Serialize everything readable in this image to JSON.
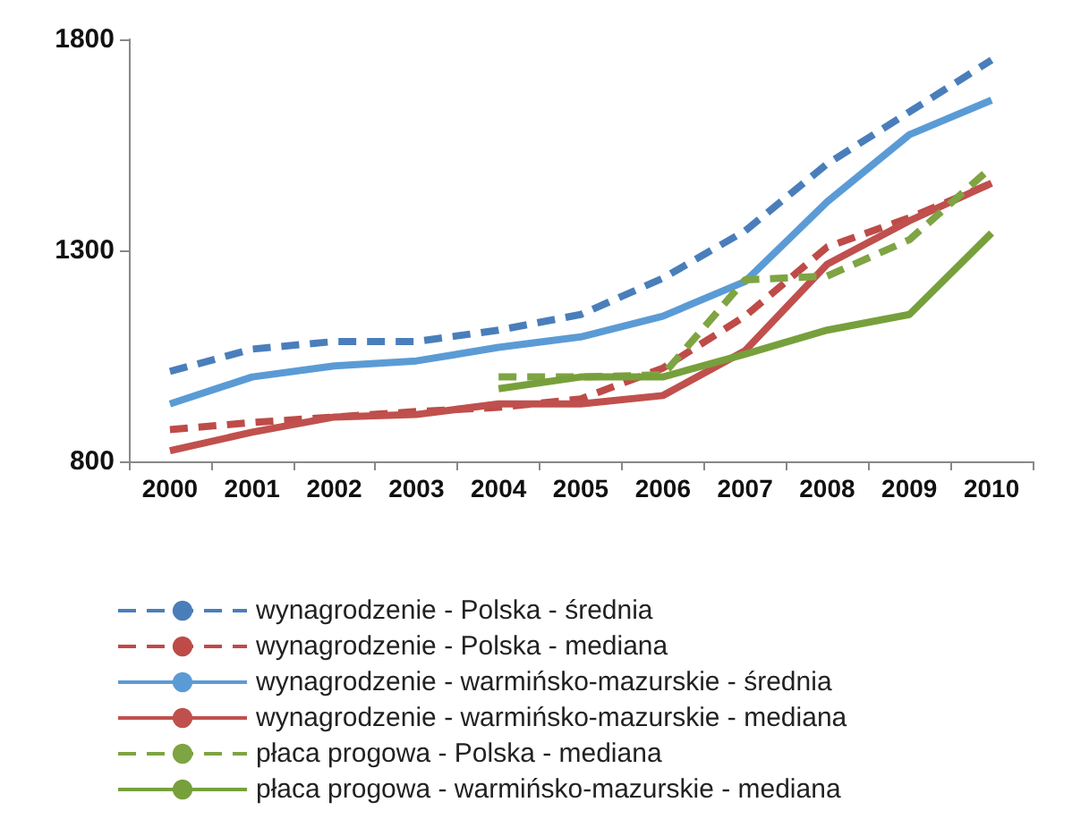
{
  "chart_data": {
    "type": "line",
    "categories": [
      "2000",
      "2001",
      "2002",
      "2003",
      "2004",
      "2005",
      "2006",
      "2007",
      "2008",
      "2009",
      "2010"
    ],
    "ylim": [
      800,
      1800
    ],
    "yticks": [
      800,
      1300,
      1800
    ],
    "grid": false,
    "legend": "bottom",
    "marker": "none",
    "series": [
      {
        "name": "wynagrodzenie - Polska - średnia",
        "color": "#4a7ebb",
        "line_style": "dashed",
        "values": [
          1013,
          1066,
          1084,
          1084,
          1111,
          1148,
          1234,
          1346,
          1505,
          1628,
          1751
        ]
      },
      {
        "name": "wynagrodzenie - Polska - mediana",
        "color": "#be4b48",
        "line_style": "dashed",
        "values": [
          875,
          892,
          905,
          918,
          928,
          948,
          1021,
          1144,
          1308,
          1377,
          1459
        ]
      },
      {
        "name": "wynagrodzenie - warmińsko-mazurskie - średnia",
        "color": "#5b9bd5",
        "line_style": "solid",
        "values": [
          936,
          1000,
          1026,
          1038,
          1070,
          1095,
          1144,
          1226,
          1415,
          1574,
          1656
        ]
      },
      {
        "name": "wynagrodzenie - warmińsko-mazurskie - mediana",
        "color": "#c0504d",
        "line_style": "solid",
        "values": [
          825,
          869,
          905,
          911,
          936,
          936,
          956,
          1062,
          1267,
          1370,
          1459
        ]
      },
      {
        "name": "płaca progowa - Polska - mediana",
        "color": "#7ea443",
        "line_style": "dashed",
        "values": [
          null,
          null,
          null,
          null,
          1000,
          1000,
          1005,
          1230,
          1239,
          1325,
          1497
        ]
      },
      {
        "name": "płaca progowa - warmińsko-mazurskie - mediana",
        "color": "#77a03c",
        "line_style": "solid",
        "values": [
          null,
          null,
          null,
          null,
          972,
          1000,
          1000,
          1054,
          1111,
          1148,
          1341
        ]
      }
    ]
  }
}
